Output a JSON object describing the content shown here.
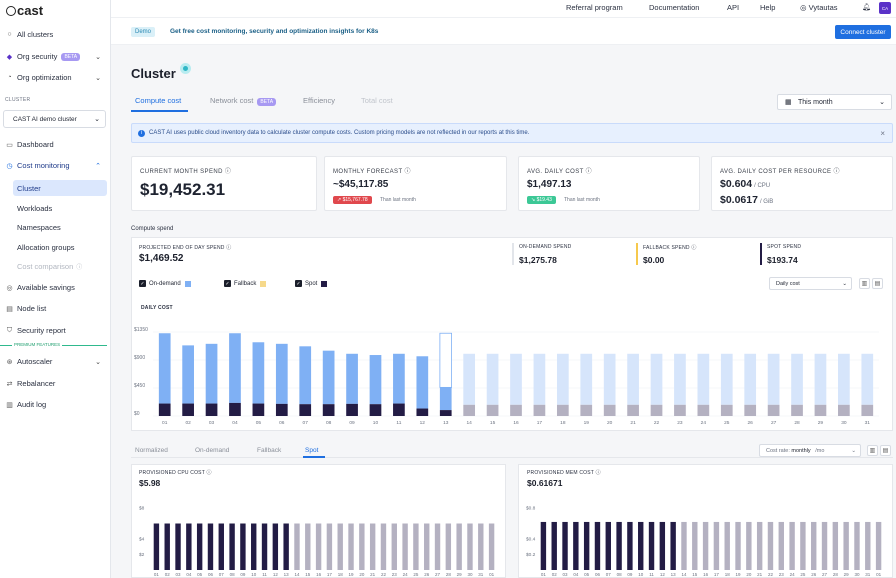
{
  "brand": {
    "name": "cast"
  },
  "sidebar": {
    "all_clusters": "All clusters",
    "org_security": "Org security",
    "org_security_badge": "BETA",
    "org_optimization": "Org optimization",
    "cluster_section": "CLUSTER",
    "cluster_select": "CAST AI demo cluster",
    "dashboard": "Dashboard",
    "cost_monitoring": "Cost monitoring",
    "cost_sub": [
      "Cluster",
      "Workloads",
      "Namespaces",
      "Allocation groups",
      "Cost comparison"
    ],
    "available_savings": "Available savings",
    "node_list": "Node list",
    "security_report": "Security report",
    "premium_label": "PREMIUM FEATURES",
    "autoscaler": "Autoscaler",
    "rebalancer": "Rebalancer",
    "audit_log": "Audit log"
  },
  "topbar": {
    "referral": "Referral program",
    "documentation": "Documentation",
    "api": "API",
    "help": "Help",
    "user": "Vytautas",
    "avatar": "CA"
  },
  "banner": {
    "tag": "Demo",
    "text": "Get free cost monitoring, security and optimization insights for K8s",
    "button": "Connect cluster"
  },
  "page": {
    "title": "Cluster",
    "tabs": [
      "Compute cost",
      "Network cost",
      "Efficiency",
      "Total cost"
    ],
    "network_badge": "BETA",
    "date_range": "This month",
    "info": "CAST AI uses public cloud inventory data to calculate cluster compute costs. Custom pricing models are not reflected in our reports at this time."
  },
  "cards": {
    "current_label": "CURRENT MONTH SPEND",
    "current_value": "$19,452.31",
    "forecast_label": "MONTHLY FORECAST",
    "forecast_value": "~$45,117.85",
    "forecast_pill": "↗ $15,767.78",
    "forecast_note": "Than last month",
    "daily_label": "AVG. DAILY COST",
    "daily_value": "$1,497.13",
    "daily_pill": "↘ $19.43",
    "daily_note": "Than last month",
    "resource_label": "AVG. DAILY COST PER RESOURCE",
    "cpu_value": "$0.604",
    "cpu_unit": "/ CPU",
    "gib_value": "$0.0617",
    "gib_unit": "/ GiB"
  },
  "compute": {
    "section": "Compute spend",
    "projected_label": "PROJECTED END OF DAY SPEND",
    "projected_value": "$1,469.52",
    "ondemand_label": "ON-DEMAND SPEND",
    "ondemand_value": "$1,275.78",
    "fallback_label": "FALLBACK SPEND",
    "fallback_value": "$0.00",
    "spot_label": "SPOT SPEND",
    "spot_value": "$193.74",
    "legend": [
      "On-demand",
      "Fallback",
      "Spot"
    ],
    "select": "Daily cost",
    "colors": {
      "ondemand": "#7fb0f4",
      "ondemand_future": "#d6e5fb",
      "fallback": "#f6d98b",
      "spot": "#231c45",
      "spot_future": "#b4b1c1"
    }
  },
  "chart_data": [
    {
      "type": "bar",
      "title": "DAILY COST",
      "ylabel": "",
      "y_ticks": [
        "$1350",
        "$900",
        "$450",
        "$0"
      ],
      "ylim": [
        0,
        1350
      ],
      "categories": [
        "01",
        "02",
        "03",
        "04",
        "05",
        "06",
        "07",
        "08",
        "09",
        "10",
        "11",
        "12",
        "13",
        "14",
        "15",
        "16",
        "17",
        "18",
        "19",
        "20",
        "21",
        "22",
        "23",
        "24",
        "25",
        "26",
        "27",
        "28",
        "29",
        "30",
        "31"
      ],
      "current_day_index": 12,
      "series": [
        {
          "name": "On-demand",
          "values": [
            1330,
            1135,
            1160,
            1330,
            1185,
            1160,
            1120,
            1050,
            1000,
            980,
            1000,
            960,
            460,
            1000,
            1000,
            1000,
            1000,
            1000,
            1000,
            1000,
            1000,
            1000,
            1000,
            1000,
            1000,
            1000,
            1000,
            1000,
            1000,
            1000,
            1000
          ]
        },
        {
          "name": "Spot",
          "values": [
            200,
            200,
            200,
            210,
            200,
            195,
            190,
            190,
            195,
            190,
            200,
            120,
            95,
            180,
            180,
            180,
            180,
            180,
            180,
            180,
            180,
            180,
            180,
            180,
            180,
            180,
            180,
            180,
            180,
            180,
            180
          ]
        }
      ]
    },
    {
      "type": "bar",
      "title": "PROVISIONED CPU COST",
      "value_label": "$5.98",
      "y_ticks": [
        "$8",
        "$4",
        "$2"
      ],
      "ylim": [
        0,
        8
      ],
      "categories": [
        "01",
        "02",
        "03",
        "04",
        "05",
        "06",
        "07",
        "08",
        "09",
        "10",
        "11",
        "12",
        "13",
        "14",
        "15",
        "16",
        "17",
        "18",
        "19",
        "20",
        "21",
        "22",
        "23",
        "24",
        "25",
        "26",
        "27",
        "28",
        "29",
        "30",
        "31",
        "01"
      ],
      "current_day_index": 12,
      "series": [
        {
          "name": "Spot",
          "values": [
            6,
            6,
            6,
            6,
            6,
            6,
            6,
            6,
            6,
            6,
            6,
            6,
            6,
            6,
            6,
            6,
            6,
            6,
            6,
            6,
            6,
            6,
            6,
            6,
            6,
            6,
            6,
            6,
            6,
            6,
            6,
            6
          ]
        }
      ]
    },
    {
      "type": "bar",
      "title": "PROVISIONED MEM COST",
      "value_label": "$0.61671",
      "y_ticks": [
        "$0.8",
        "$0.4",
        "$0.2"
      ],
      "ylim": [
        0,
        0.8
      ],
      "categories": [
        "01",
        "02",
        "03",
        "04",
        "05",
        "06",
        "07",
        "08",
        "09",
        "10",
        "11",
        "12",
        "13",
        "14",
        "15",
        "16",
        "17",
        "18",
        "19",
        "20",
        "21",
        "22",
        "23",
        "24",
        "25",
        "26",
        "27",
        "28",
        "29",
        "30",
        "31",
        "01"
      ],
      "current_day_index": 12,
      "series": [
        {
          "name": "Spot",
          "values": [
            0.62,
            0.62,
            0.62,
            0.62,
            0.62,
            0.62,
            0.62,
            0.62,
            0.62,
            0.62,
            0.62,
            0.62,
            0.62,
            0.62,
            0.62,
            0.62,
            0.62,
            0.62,
            0.62,
            0.62,
            0.62,
            0.62,
            0.62,
            0.62,
            0.62,
            0.62,
            0.62,
            0.62,
            0.62,
            0.62,
            0.62,
            0.62
          ]
        }
      ]
    }
  ],
  "bottom": {
    "tabs": [
      "Normalized",
      "On-demand",
      "Fallback",
      "Spot"
    ],
    "rate_label": "Cost rate:",
    "rate_value": "monthly",
    "rate_unit": "/mo"
  }
}
